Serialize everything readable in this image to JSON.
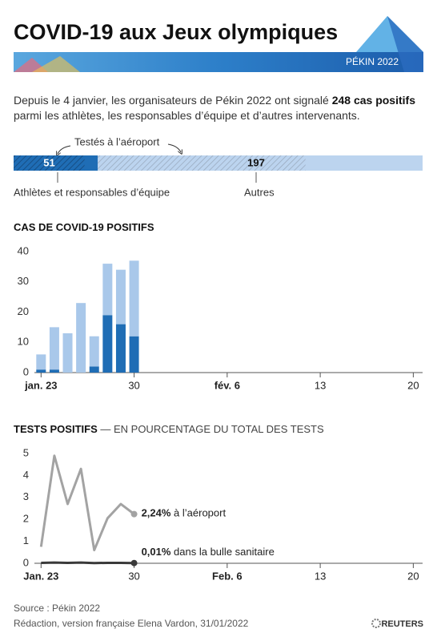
{
  "header": {
    "title": "COVID-19 aux Jeux olympiques",
    "banner": "PÉKIN 2022"
  },
  "intro": {
    "before": "Depuis le 4 janvier, les organisateurs de Pékin 2022 ont signalé ",
    "highlight": "248 cas positifs",
    "after": " parmi les athlètes, les responsables d’équipe et d’autres intervenants."
  },
  "summary": {
    "annotation": "Testés à l’aéroport",
    "values": [
      51,
      197
    ],
    "airport_values": [
      43,
      126
    ],
    "labels": [
      "Athlètes et responsables d’équipe",
      "Autres"
    ],
    "colors": [
      "#1f6db5",
      "#bcd4ef"
    ]
  },
  "chart_data": [
    {
      "type": "bar",
      "stacked": true,
      "title": "CAS DE COVID-19 POSITIFS",
      "x": [
        23,
        24,
        25,
        26,
        27,
        28,
        29,
        30
      ],
      "series": [
        {
          "color": "#1f6db5",
          "values": [
            1,
            1,
            0,
            0,
            2,
            19,
            16,
            12
          ]
        },
        {
          "color": "#a9c8ea",
          "values": [
            5,
            14,
            13,
            23,
            10,
            17,
            18,
            25
          ]
        }
      ],
      "xlim": [
        22.5,
        51.7
      ],
      "xticks": [
        {
          "value": 23,
          "label": "jan. 23"
        },
        30,
        {
          "value": 37,
          "label": "fév. 6"
        },
        {
          "value": 44,
          "label": "13"
        },
        {
          "value": 51,
          "label": "20"
        }
      ],
      "ylim": [
        0,
        40
      ],
      "yticks": [
        0,
        10,
        20,
        30,
        40
      ]
    },
    {
      "type": "line",
      "title": "TESTS POSITIFS",
      "subtitle": " — EN POURCENTAGE DU TOTAL DES TESTS",
      "x": [
        23,
        24,
        25,
        26,
        27,
        28,
        29,
        30
      ],
      "series": [
        {
          "name": " à l’aéroport",
          "color": "#a3a3a3",
          "values": [
            0.75,
            4.9,
            2.7,
            4.3,
            0.6,
            2.05,
            2.7,
            2.24
          ],
          "value_labels": [
            null,
            null,
            null,
            null,
            null,
            null,
            null,
            "2,24%"
          ]
        },
        {
          "name": " dans la bulle sanitaire",
          "color": "#3a3a3a",
          "values": [
            0.02,
            0.03,
            0.02,
            0.03,
            0.01,
            0.02,
            0.02,
            0.01
          ],
          "value_labels": [
            null,
            null,
            null,
            null,
            null,
            null,
            null,
            "0,01%"
          ]
        }
      ],
      "xlim": [
        22.5,
        51.7
      ],
      "xticks": [
        {
          "value": 23,
          "label": "Jan. 23"
        },
        30,
        {
          "value": 37,
          "label": "Feb. 6"
        },
        {
          "value": 44,
          "label": "13"
        },
        {
          "value": 51,
          "label": "20"
        }
      ],
      "ylim": [
        0,
        5
      ],
      "yticks": [
        0,
        1,
        2,
        3,
        4,
        5
      ]
    }
  ],
  "footer": {
    "source": "Source : Pékin 2022",
    "credit": "Rédaction, version française Elena Vardon, 31/01/2022",
    "agency": "REUTERS"
  }
}
